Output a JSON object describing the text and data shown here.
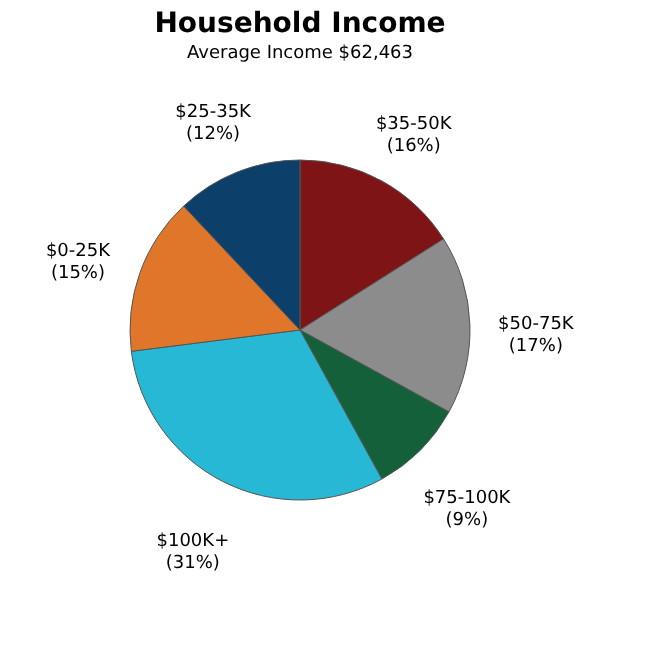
{
  "chart_data": {
    "type": "pie",
    "title": "Household Income",
    "subtitle": "Average Income  $62,463",
    "categories": [
      "$35-50K",
      "$50-75K",
      "$75-100K",
      "$100K+",
      "$0-25K",
      "$25-35K"
    ],
    "values": [
      16,
      17,
      9,
      31,
      15,
      12
    ],
    "value_labels": [
      "(16%)",
      "(17%)",
      "(9%)",
      "(31%)",
      "(15%)",
      "(12%)"
    ],
    "colors": [
      "#7f1416",
      "#8c8c8c",
      "#14603a",
      "#26b8d4",
      "#e0762a",
      "#0d3f6b"
    ],
    "legend": false
  }
}
